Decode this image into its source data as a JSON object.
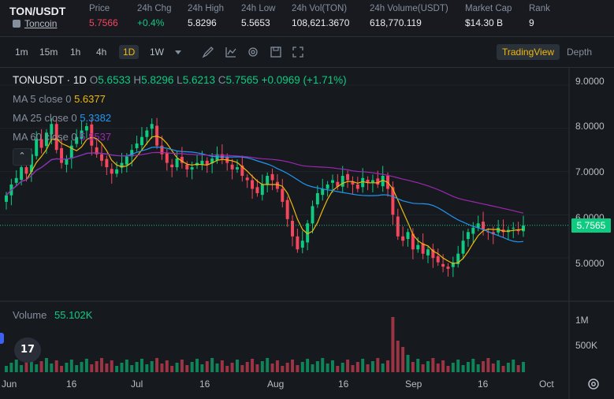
{
  "header": {
    "pair": "TON/USDT",
    "coin_link": "Toncoin",
    "stats": [
      {
        "label": "Price",
        "value": "5.7566",
        "color": "red"
      },
      {
        "label": "24h Chg",
        "value": "+0.4%",
        "color": "green"
      },
      {
        "label": "24h High",
        "value": "5.8296",
        "color": ""
      },
      {
        "label": "24h Low",
        "value": "5.5653",
        "color": ""
      },
      {
        "label": "24h Vol(TON)",
        "value": "108,621.3670",
        "color": ""
      },
      {
        "label": "24h Volume(USDT)",
        "value": "618,770.119",
        "color": ""
      },
      {
        "label": "Market Cap",
        "value": "$14.30 B",
        "color": ""
      },
      {
        "label": "Rank",
        "value": "9",
        "color": ""
      }
    ]
  },
  "toolbar": {
    "timeframes": [
      "1m",
      "15m",
      "1h",
      "4h",
      "1D",
      "1W"
    ],
    "active_timeframe": "1D",
    "tools": [
      "brush-icon",
      "indicator-icon",
      "settings-icon",
      "save-icon",
      "fullscreen-icon"
    ],
    "tradingview_label": "TradingView",
    "depth_label": "Depth"
  },
  "legend": {
    "symbol": "TONUSDT · 1D",
    "o_label": "O",
    "o": "5.6533",
    "h_label": "H",
    "h": "5.8296",
    "l_label": "L",
    "l": "5.6213",
    "c_label": "C",
    "c": "5.7565",
    "change": "+0.0969 (+1.71%)",
    "ma5_label": "MA 5 close 0",
    "ma5": "5.6377",
    "ma25_label": "MA 25 close 0",
    "ma25": "5.3382",
    "ma60_label": "MA 60 close 0",
    "ma60": "5.8537"
  },
  "price_axis": [
    "9.0000",
    "8.0000",
    "7.0000",
    "6.0000",
    "5.0000"
  ],
  "last_price": "5.7565",
  "volume": {
    "label": "Volume",
    "value": "55.102K",
    "axis": [
      "1M",
      "500K"
    ]
  },
  "time_axis": [
    "Jun",
    "16",
    "Jul",
    "16",
    "Aug",
    "16",
    "Sep",
    "16",
    "Oct"
  ],
  "colors": {
    "up": "#0ecb81",
    "down": "#f6465d",
    "ma5": "#f0b90b",
    "ma25": "#2196f3",
    "ma60": "#9c27b0",
    "accent": "#f0b90b"
  },
  "chart_data": {
    "type": "candlestick",
    "x_axis": "date (2024-06-01 to 2024-09-25)",
    "ylim": [
      4.0,
      9.4
    ],
    "series": [
      {
        "name": "TONUSDT",
        "values": [
          6.45,
          6.7,
          6.85,
          7.1,
          6.95,
          7.4,
          7.75,
          7.55,
          7.9,
          8.1,
          7.5,
          7.2,
          7.3,
          7.6,
          7.8,
          7.95,
          8.05,
          7.6,
          7.4,
          7.25,
          7.1,
          6.95,
          7.05,
          7.2,
          7.35,
          7.5,
          7.65,
          7.8,
          7.95,
          8.1,
          7.6,
          7.4,
          7.2,
          7.1,
          7.3,
          7.2,
          7.05,
          7.1,
          7.2,
          7.25,
          7.15,
          7.3,
          7.4,
          7.3,
          7.2,
          7.05,
          7.1,
          6.9,
          6.8,
          6.6,
          6.5,
          6.7,
          6.9,
          6.8,
          6.6,
          6.3,
          5.9,
          5.5,
          5.2,
          5.4,
          5.8,
          6.2,
          6.5,
          6.6,
          6.7,
          6.8,
          6.65,
          6.9,
          6.8,
          6.7,
          6.6,
          6.85,
          6.75,
          6.8,
          6.7,
          6.9,
          6.6,
          6.0,
          5.5,
          5.4,
          5.6,
          5.2,
          5.3,
          5.1,
          5.2,
          5.0,
          4.9,
          4.8,
          4.75,
          4.9,
          5.1,
          5.4,
          5.6,
          5.7,
          5.8,
          5.65,
          5.6,
          5.55,
          5.7,
          5.6,
          5.65,
          5.7,
          5.62,
          5.75
        ]
      },
      {
        "name": "MA 5 close 0",
        "last": 5.6377
      },
      {
        "name": "MA 25 close 0",
        "last": 5.3382
      },
      {
        "name": "MA 60 close 0",
        "last": 5.8537
      }
    ]
  }
}
